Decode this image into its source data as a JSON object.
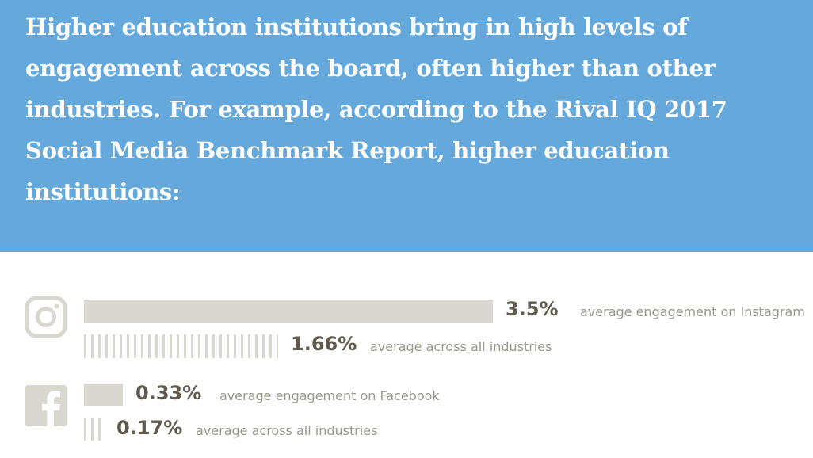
{
  "headline": "Higher education institutions bring in high levels of engagement across the board, often higher than other industries. For example, according to the Rival IQ 2017 Social Media Benchmark Report, higher education institutions:",
  "colors": {
    "banner": "#65a9dc",
    "bar": "#d9d7d0",
    "value_text": "#5f5a4d",
    "caption_text": "#9a968c",
    "icon": "#d9d7d0"
  },
  "chart_data": {
    "type": "bar",
    "orientation": "horizontal",
    "unit": "%",
    "groups": [
      {
        "icon": "instagram-icon",
        "rows": [
          {
            "value": 3.5,
            "value_label": "3.5%",
            "caption": "average engagement on Instagram",
            "style": "solid"
          },
          {
            "value": 1.66,
            "value_label": "1.66%",
            "caption": "average across all industries",
            "style": "striped"
          }
        ]
      },
      {
        "icon": "facebook-icon",
        "rows": [
          {
            "value": 0.33,
            "value_label": "0.33%",
            "caption": "average engagement on Facebook",
            "style": "solid"
          },
          {
            "value": 0.17,
            "value_label": "0.17%",
            "caption": "average across all industries",
            "style": "striped"
          }
        ]
      }
    ]
  }
}
